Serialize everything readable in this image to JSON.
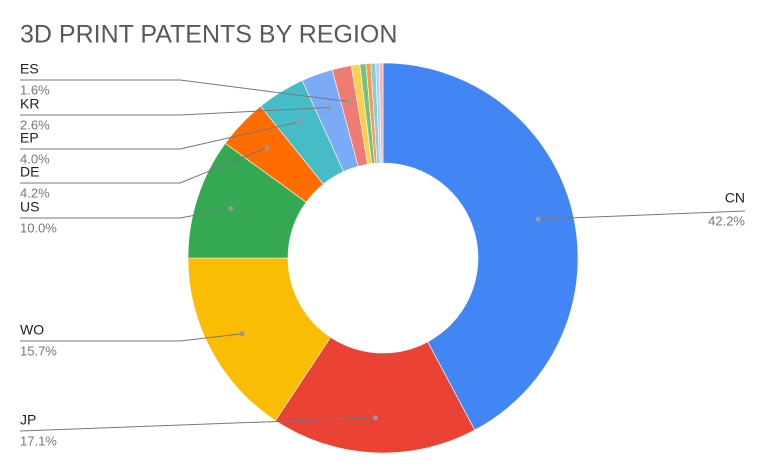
{
  "chart_data": {
    "type": "donut",
    "title": "3D PRINT PATENTS BY REGION",
    "categories": [
      "CN",
      "JP",
      "WO",
      "US",
      "DE",
      "EP",
      "KR",
      "ES",
      null,
      null,
      null,
      null,
      null,
      null
    ],
    "values": [
      42.2,
      17.1,
      15.7,
      10.0,
      4.2,
      4.0,
      2.6,
      1.6,
      0.7,
      0.5,
      0.4,
      0.4,
      0.3,
      0.3
    ],
    "value_labels": [
      "42.2%",
      "17.1%",
      "15.7%",
      "10.0%",
      "4.2%",
      "4.0%",
      "2.6%",
      "1.6%",
      null,
      null,
      null,
      null,
      null,
      null
    ],
    "colors": [
      "#4285f4",
      "#ea4335",
      "#fbbc04",
      "#34a853",
      "#ff6d01",
      "#46bdc6",
      "#7baaf7",
      "#f07b72",
      "#fcd04f",
      "#71c287",
      "#ff994d",
      "#7ed1d7",
      "#b3cefb",
      "#f7b4ae"
    ]
  }
}
